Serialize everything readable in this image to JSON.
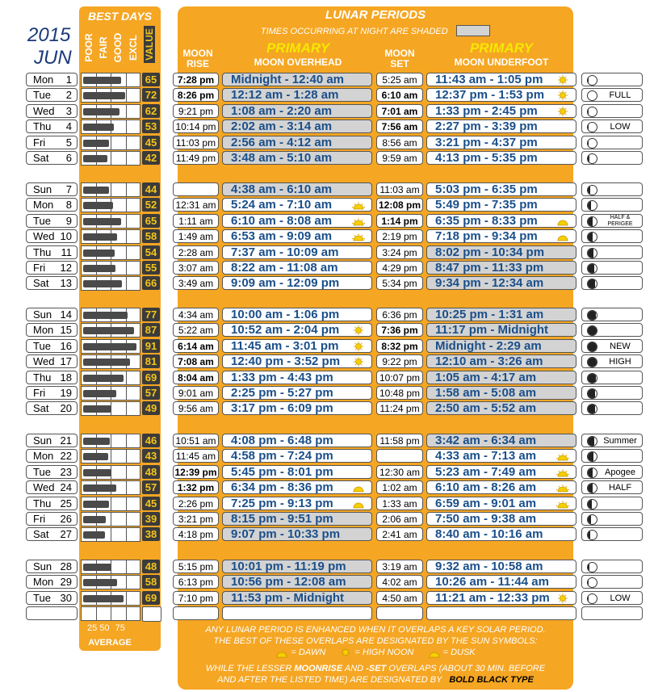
{
  "year": "2015",
  "month": "JUN",
  "best_days": {
    "title": "BEST DAYS",
    "columns": [
      "POOR",
      "FAIR",
      "GOOD",
      "EXCL",
      "VALUE"
    ],
    "scale": [
      "25",
      "50",
      "75"
    ],
    "average_label": "AVERAGE"
  },
  "lunar": {
    "title": "LUNAR PERIODS",
    "subtitle": "TIMES OCCURRING AT NIGHT ARE SHADED",
    "moon_rise_label": "MOON RISE",
    "moon_set_label": "MOON SET",
    "primary_label": "PRIMARY",
    "overhead_label": "MOON OVERHEAD",
    "underfoot_label": "MOON UNDERFOOT"
  },
  "weeks": [
    [
      {
        "day": "Mon",
        "date": "1",
        "value": "65",
        "rise": "7:28 pm",
        "rise_bold": true,
        "over": "Midnight - 12:40 am",
        "over_night": true,
        "over_sun": "",
        "set": "5:25 am",
        "set_bold": false,
        "under": "11:43 am - 1:05 pm",
        "under_night": false,
        "under_sun": "noon",
        "phase": 0.93,
        "note": ""
      },
      {
        "day": "Tue",
        "date": "2",
        "value": "72",
        "rise": "8:26 pm",
        "rise_bold": true,
        "over": "12:12 am - 1:28 am",
        "over_night": true,
        "over_sun": "",
        "set": "6:10 am",
        "set_bold": true,
        "under": "12:37 pm - 1:53 pm",
        "under_night": false,
        "under_sun": "noon",
        "phase": 1.0,
        "note": "FULL"
      },
      {
        "day": "Wed",
        "date": "3",
        "value": "62",
        "rise": "9:21 pm",
        "rise_bold": false,
        "over": "1:08 am - 2:20 am",
        "over_night": true,
        "over_sun": "",
        "set": "7:01 am",
        "set_bold": true,
        "under": "1:33 pm - 2:45 pm",
        "under_night": false,
        "under_sun": "noon",
        "phase": 0.98,
        "note": ""
      },
      {
        "day": "Thu",
        "date": "4",
        "value": "53",
        "rise": "10:14 pm",
        "rise_bold": false,
        "over": "2:02 am - 3:14 am",
        "over_night": true,
        "over_sun": "",
        "set": "7:56 am",
        "set_bold": true,
        "under": "2:27 pm - 3:39 pm",
        "under_night": false,
        "under_sun": "",
        "phase": 0.95,
        "note": "LOW"
      },
      {
        "day": "Fri",
        "date": "5",
        "value": "45",
        "rise": "11:03 pm",
        "rise_bold": false,
        "over": "2:56 am - 4:12 am",
        "over_night": true,
        "over_sun": "",
        "set": "8:56 am",
        "set_bold": false,
        "under": "3:21 pm - 4:37 pm",
        "under_night": false,
        "under_sun": "",
        "phase": 0.88,
        "note": ""
      },
      {
        "day": "Sat",
        "date": "6",
        "value": "42",
        "rise": "11:49 pm",
        "rise_bold": false,
        "over": "3:48 am - 5:10 am",
        "over_night": true,
        "over_sun": "",
        "set": "9:59 am",
        "set_bold": false,
        "under": "4:13 pm - 5:35 pm",
        "under_night": false,
        "under_sun": "",
        "phase": 0.8,
        "note": ""
      }
    ],
    [
      {
        "day": "Sun",
        "date": "7",
        "value": "44",
        "rise": "",
        "rise_bold": false,
        "over": "4:38 am - 6:10 am",
        "over_night": true,
        "over_sun": "",
        "set": "11:03 am",
        "set_bold": false,
        "under": "5:03 pm - 6:35 pm",
        "under_night": false,
        "under_sun": "",
        "phase": 0.7,
        "note": ""
      },
      {
        "day": "Mon",
        "date": "8",
        "value": "52",
        "rise": "12:31 am",
        "rise_bold": false,
        "over": "5:24 am - 7:10 am",
        "over_night": false,
        "over_sun": "dawn",
        "set": "12:08 pm",
        "set_bold": true,
        "under": "5:49 pm - 7:35 pm",
        "under_night": false,
        "under_sun": "",
        "phase": 0.62,
        "note": ""
      },
      {
        "day": "Tue",
        "date": "9",
        "value": "65",
        "rise": "1:11 am",
        "rise_bold": false,
        "over": "6:10 am - 8:08 am",
        "over_night": false,
        "over_sun": "dawn",
        "set": "1:14 pm",
        "set_bold": true,
        "under": "6:35 pm - 8:33 pm",
        "under_night": false,
        "under_sun": "dusk",
        "phase": 0.5,
        "note": "HALF & PERIGEE"
      },
      {
        "day": "Wed",
        "date": "10",
        "value": "58",
        "rise": "1:49 am",
        "rise_bold": false,
        "over": "6:53 am - 9:09 am",
        "over_night": false,
        "over_sun": "dawn",
        "set": "2:19 pm",
        "set_bold": false,
        "under": "7:18 pm - 9:34 pm",
        "under_night": false,
        "under_sun": "dusk",
        "phase": 0.42,
        "note": ""
      },
      {
        "day": "Thu",
        "date": "11",
        "value": "54",
        "rise": "2:28 am",
        "rise_bold": false,
        "over": "7:37 am - 10:09 am",
        "over_night": false,
        "over_sun": "",
        "set": "3:24 pm",
        "set_bold": false,
        "under": "8:02 pm - 10:34 pm",
        "under_night": true,
        "under_sun": "",
        "phase": 0.33,
        "note": ""
      },
      {
        "day": "Fri",
        "date": "12",
        "value": "55",
        "rise": "3:07 am",
        "rise_bold": false,
        "over": "8:22 am - 11:08 am",
        "over_night": false,
        "over_sun": "",
        "set": "4:29 pm",
        "set_bold": false,
        "under": "8:47 pm - 11:33 pm",
        "under_night": true,
        "under_sun": "",
        "phase": 0.25,
        "note": ""
      },
      {
        "day": "Sat",
        "date": "13",
        "value": "66",
        "rise": "3:49 am",
        "rise_bold": false,
        "over": "9:09 am - 12:09 pm",
        "over_night": false,
        "over_sun": "",
        "set": "5:34 pm",
        "set_bold": false,
        "under": "9:34 pm - 12:34 am",
        "under_night": true,
        "under_sun": "",
        "phase": 0.18,
        "note": ""
      }
    ],
    [
      {
        "day": "Sun",
        "date": "14",
        "value": "77",
        "rise": "4:34 am",
        "rise_bold": false,
        "over": "10:00 am - 1:06 pm",
        "over_night": false,
        "over_sun": "",
        "set": "6:36 pm",
        "set_bold": false,
        "under": "10:25 pm - 1:31 am",
        "under_night": true,
        "under_sun": "",
        "phase": 0.1,
        "note": ""
      },
      {
        "day": "Mon",
        "date": "15",
        "value": "87",
        "rise": "5:22 am",
        "rise_bold": false,
        "over": "10:52 am - 2:04 pm",
        "over_night": false,
        "over_sun": "noon",
        "set": "7:36 pm",
        "set_bold": true,
        "under": "11:17 pm - Midnight",
        "under_night": true,
        "under_sun": "",
        "phase": 0.04,
        "note": ""
      },
      {
        "day": "Tue",
        "date": "16",
        "value": "91",
        "rise": "6:14 am",
        "rise_bold": true,
        "over": "11:45 am - 3:01 pm",
        "over_night": false,
        "over_sun": "noon",
        "set": "8:32 pm",
        "set_bold": true,
        "under": "Midnight - 2:29 am",
        "under_night": true,
        "under_sun": "",
        "phase": 0.0,
        "note": "NEW"
      },
      {
        "day": "Wed",
        "date": "17",
        "value": "81",
        "rise": "7:08 am",
        "rise_bold": true,
        "over": "12:40 pm - 3:52 pm",
        "over_night": false,
        "over_sun": "noon",
        "set": "9:22 pm",
        "set_bold": false,
        "under": "12:10 am - 3:26 am",
        "under_night": true,
        "under_sun": "",
        "phase": 0.03,
        "note": "HIGH"
      },
      {
        "day": "Thu",
        "date": "18",
        "value": "69",
        "rise": "8:04 am",
        "rise_bold": true,
        "over": "1:33 pm - 4:43 pm",
        "over_night": false,
        "over_sun": "",
        "set": "10:07 pm",
        "set_bold": false,
        "under": "1:05 am - 4:17 am",
        "under_night": true,
        "under_sun": "",
        "phase": 0.08,
        "note": ""
      },
      {
        "day": "Fri",
        "date": "19",
        "value": "57",
        "rise": "9:01 am",
        "rise_bold": false,
        "over": "2:25 pm - 5:27 pm",
        "over_night": false,
        "over_sun": "",
        "set": "10:48 pm",
        "set_bold": false,
        "under": "1:58 am - 5:08 am",
        "under_night": true,
        "under_sun": "",
        "phase": 0.14,
        "note": ""
      },
      {
        "day": "Sat",
        "date": "20",
        "value": "49",
        "rise": "9:56 am",
        "rise_bold": false,
        "over": "3:17 pm - 6:09 pm",
        "over_night": false,
        "over_sun": "",
        "set": "11:24 pm",
        "set_bold": false,
        "under": "2:50 am - 5:52 am",
        "under_night": true,
        "under_sun": "",
        "phase": 0.2,
        "note": ""
      }
    ],
    [
      {
        "day": "Sun",
        "date": "21",
        "value": "46",
        "rise": "10:51 am",
        "rise_bold": false,
        "over": "4:08 pm - 6:48 pm",
        "over_night": false,
        "over_sun": "",
        "set": "11:58 pm",
        "set_bold": false,
        "under": "3:42 am - 6:34 am",
        "under_night": true,
        "under_sun": "",
        "phase": 0.28,
        "note": "Summer"
      },
      {
        "day": "Mon",
        "date": "22",
        "value": "43",
        "rise": "11:45 am",
        "rise_bold": false,
        "over": "4:58 pm - 7:24 pm",
        "over_night": false,
        "over_sun": "",
        "set": "",
        "set_bold": false,
        "under": "4:33 am - 7:13 am",
        "under_night": false,
        "under_sun": "dawn",
        "phase": 0.36,
        "note": ""
      },
      {
        "day": "Tue",
        "date": "23",
        "value": "48",
        "rise": "12:39 pm",
        "rise_bold": true,
        "over": "5:45 pm - 8:01 pm",
        "over_night": false,
        "over_sun": "",
        "set": "12:30 am",
        "set_bold": false,
        "under": "5:23 am - 7:49 am",
        "under_night": false,
        "under_sun": "dawn",
        "phase": 0.44,
        "note": "Apogee"
      },
      {
        "day": "Wed",
        "date": "24",
        "value": "57",
        "rise": "1:32 pm",
        "rise_bold": true,
        "over": "6:34 pm - 8:36 pm",
        "over_night": false,
        "over_sun": "dusk",
        "set": "1:02 am",
        "set_bold": false,
        "under": "6:10 am - 8:26 am",
        "under_night": false,
        "under_sun": "dawn",
        "phase": 0.5,
        "note": "HALF"
      },
      {
        "day": "Thu",
        "date": "25",
        "value": "45",
        "rise": "2:26 pm",
        "rise_bold": false,
        "over": "7:25 pm - 9:13 pm",
        "over_night": false,
        "over_sun": "dusk",
        "set": "1:33 am",
        "set_bold": false,
        "under": "6:59 am - 9:01 am",
        "under_night": false,
        "under_sun": "dawn",
        "phase": 0.58,
        "note": ""
      },
      {
        "day": "Fri",
        "date": "26",
        "value": "39",
        "rise": "3:21 pm",
        "rise_bold": false,
        "over": "8:15 pm - 9:51 pm",
        "over_night": true,
        "over_sun": "",
        "set": "2:06 am",
        "set_bold": false,
        "under": "7:50 am - 9:38 am",
        "under_night": false,
        "under_sun": "",
        "phase": 0.66,
        "note": ""
      },
      {
        "day": "Sat",
        "date": "27",
        "value": "38",
        "rise": "4:18 pm",
        "rise_bold": false,
        "over": "9:07 pm - 10:33 pm",
        "over_night": true,
        "over_sun": "",
        "set": "2:41 am",
        "set_bold": false,
        "under": "8:40 am - 10:16 am",
        "under_night": false,
        "under_sun": "",
        "phase": 0.74,
        "note": ""
      }
    ],
    [
      {
        "day": "Sun",
        "date": "28",
        "value": "48",
        "rise": "5:15 pm",
        "rise_bold": false,
        "over": "10:01 pm - 11:19 pm",
        "over_night": true,
        "over_sun": "",
        "set": "3:19 am",
        "set_bold": false,
        "under": "9:32 am - 10:58 am",
        "under_night": false,
        "under_sun": "",
        "phase": 0.82,
        "note": ""
      },
      {
        "day": "Mon",
        "date": "29",
        "value": "58",
        "rise": "6:13 pm",
        "rise_bold": false,
        "over": "10:56 pm - 12:08 am",
        "over_night": true,
        "over_sun": "",
        "set": "4:02 am",
        "set_bold": false,
        "under": "10:26 am - 11:44 am",
        "under_night": false,
        "under_sun": "",
        "phase": 0.88,
        "note": ""
      },
      {
        "day": "Tue",
        "date": "30",
        "value": "69",
        "rise": "7:10 pm",
        "rise_bold": false,
        "over": "11:53 pm - Midnight",
        "over_night": true,
        "over_sun": "",
        "set": "4:50 am",
        "set_bold": false,
        "under": "11:21 am - 12:33 pm",
        "under_night": false,
        "under_sun": "noon",
        "phase": 0.95,
        "note": "LOW"
      }
    ]
  ],
  "footer": {
    "line1": "ANY LUNAR PERIOD IS ENHANCED WHEN IT OVERLAPS A KEY SOLAR PERIOD.",
    "line2": "THE BEST OF THESE OVERLAPS ARE DESIGNATED BY THE SUN SYMBOLS:",
    "dawn": "= DAWN",
    "noon": "= HIGH NOON",
    "dusk": "= DUSK",
    "line4a": "WHILE THE LESSER",
    "line4b": "MOONRISE",
    "line4c": "AND",
    "line4d": "-SET",
    "line4e": "OVERLAPS (ABOUT 30 MIN. BEFORE",
    "line5a": "AND AFTER THE LISTED TIME) ARE DESIGNATED BY",
    "line5b": "BOLD BLACK",
    "line5c": "TYPE"
  },
  "colors": {
    "orange": "#f5a623",
    "blue": "#1a4f8a",
    "gray": "#d3d3d3",
    "valbg": "#3b3b3b",
    "valtext": "#f5c518"
  }
}
